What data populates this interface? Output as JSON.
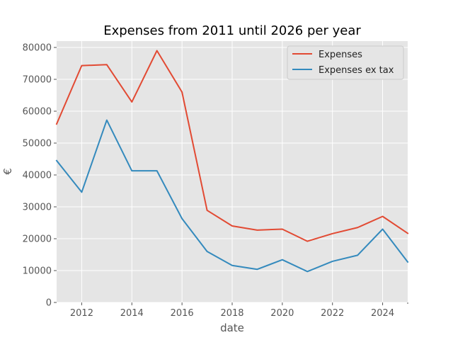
{
  "chart_data": {
    "type": "line",
    "title": "Expenses from 2011 until 2026 per year",
    "xlabel": "date",
    "ylabel": "€",
    "x": [
      2011,
      2012,
      2013,
      2014,
      2015,
      2016,
      2017,
      2018,
      2019,
      2020,
      2021,
      2022,
      2023,
      2024,
      2025
    ],
    "xlim": [
      2011,
      2025
    ],
    "ylim": [
      0,
      82000
    ],
    "xticks": [
      2012,
      2014,
      2016,
      2018,
      2020,
      2022,
      2024
    ],
    "xtick_labels": [
      "2012",
      "2014",
      "2016",
      "2018",
      "2020",
      "2022",
      "2024"
    ],
    "yticks": [
      0,
      10000,
      20000,
      30000,
      40000,
      50000,
      60000,
      70000,
      80000
    ],
    "ytick_labels": [
      "0",
      "10000",
      "20000",
      "30000",
      "40000",
      "50000",
      "60000",
      "70000",
      "80000"
    ],
    "grid": true,
    "legend_position": "top-right",
    "series": [
      {
        "name": "Expenses",
        "color": "#E24A33",
        "values": [
          56000,
          74300,
          74600,
          62900,
          79000,
          66000,
          28900,
          24000,
          22700,
          23000,
          19200,
          21600,
          23500,
          27000,
          21700
        ]
      },
      {
        "name": "Expenses ex tax",
        "color": "#348ABD",
        "values": [
          44500,
          34600,
          57200,
          41300,
          41300,
          26300,
          16000,
          11600,
          10400,
          13400,
          9700,
          12900,
          14800,
          23000,
          12700
        ]
      }
    ]
  }
}
